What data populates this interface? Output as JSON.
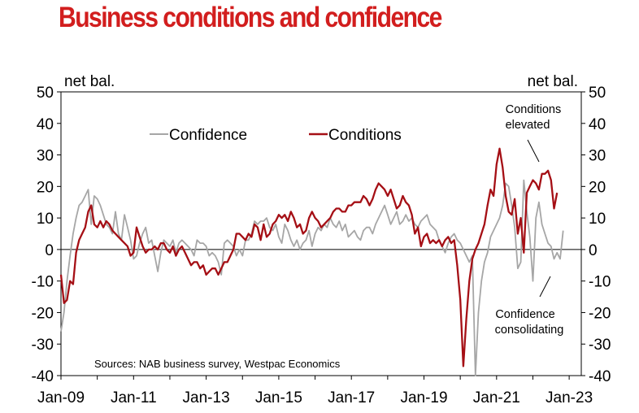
{
  "chart_data": {
    "type": "line",
    "title": "Business conditions and confidence",
    "ylabel_left": "net bal.",
    "ylabel_right": "net bal.",
    "ylim": [
      -40,
      50
    ],
    "yticks": [
      50,
      40,
      30,
      20,
      10,
      0,
      -10,
      -20,
      -30,
      -40
    ],
    "xlim": [
      "2009-01",
      "2023-05"
    ],
    "xticks": [
      "Jan-09",
      "Jan-11",
      "Jan-13",
      "Jan-15",
      "Jan-17",
      "Jan-19",
      "Jan-21",
      "Jan-23"
    ],
    "legend": [
      "Confidence",
      "Conditions"
    ],
    "colors": {
      "Confidence": "#a6a6a6",
      "Conditions": "#a50f15",
      "title": "#d21e1e"
    },
    "annotations": [
      {
        "lines": [
          "Conditions",
          "elevated"
        ]
      },
      {
        "lines": [
          "Confidence",
          "consolidating"
        ]
      }
    ],
    "source": "Sources: NAB business survey, Westpac Economics",
    "series": [
      {
        "name": "Confidence",
        "start": "2009-01",
        "values": [
          -26,
          -20,
          -10,
          -2,
          5,
          10,
          14,
          15,
          17,
          19,
          8,
          17,
          16,
          14,
          11,
          8,
          7,
          5,
          12,
          5,
          3,
          11,
          7,
          3,
          -3,
          -2,
          2,
          5,
          7,
          2,
          3,
          -2,
          -7,
          -1,
          3,
          2,
          1,
          3,
          -1,
          2,
          3,
          2,
          1,
          0,
          -2,
          3,
          2,
          2,
          1,
          -2,
          -1,
          -2,
          -4,
          -8,
          2,
          3,
          2,
          1,
          -2,
          0,
          -2,
          3,
          3,
          5,
          9,
          8,
          9,
          9,
          10,
          7,
          6,
          8,
          4,
          2,
          8,
          6,
          3,
          1,
          3,
          0,
          2,
          3,
          6,
          1,
          5,
          7,
          6,
          8,
          7,
          10,
          8,
          7,
          9,
          6,
          8,
          4,
          5,
          6,
          4,
          3,
          6,
          7,
          7,
          5,
          8,
          10,
          12,
          14,
          11,
          8,
          10,
          12,
          8,
          9,
          11,
          9,
          10,
          8,
          7,
          9,
          10,
          11,
          8,
          7,
          6,
          3,
          1,
          -1,
          2,
          4,
          5,
          3,
          2,
          0,
          -2,
          -4,
          -2,
          -66,
          -20,
          -10,
          -4,
          -1,
          4,
          6,
          8,
          10,
          14,
          21,
          20,
          14,
          7,
          -6,
          -4,
          22,
          12,
          4,
          -10,
          10,
          15,
          8,
          5,
          2,
          1,
          -3,
          -1,
          -3,
          6
        ]
      },
      {
        "name": "Conditions",
        "start": "2009-01",
        "values": [
          -8,
          -17,
          -16,
          -10,
          -11,
          -1,
          3,
          5,
          7,
          12,
          14,
          8,
          7,
          9,
          7,
          9,
          8,
          6,
          5,
          4,
          3,
          2,
          1,
          -2,
          -1,
          7,
          4,
          1,
          -1,
          0,
          0,
          1,
          0,
          2,
          2,
          0,
          -1,
          1,
          -2,
          0,
          1,
          -1,
          -3,
          -5,
          -4,
          -4,
          -6,
          -5,
          -8,
          -7,
          -6,
          -6,
          -8,
          -6,
          -4,
          -4,
          -2,
          0,
          5,
          5,
          4,
          3,
          5,
          4,
          8,
          7,
          3,
          8,
          4,
          5,
          8,
          9,
          11,
          10,
          11,
          9,
          12,
          10,
          7,
          8,
          5,
          6,
          10,
          12,
          10,
          9,
          7,
          8,
          9,
          10,
          12,
          13,
          13,
          12,
          12,
          14,
          14,
          15,
          15,
          15,
          17,
          16,
          14,
          16,
          19,
          21,
          20,
          19,
          17,
          19,
          16,
          13,
          14,
          17,
          15,
          14,
          11,
          5,
          7,
          1,
          4,
          5,
          2,
          3,
          2,
          3,
          1,
          3,
          4,
          2,
          3,
          -5,
          -16,
          -37,
          -22,
          -10,
          -3,
          0,
          2,
          5,
          8,
          14,
          19,
          17,
          27,
          32,
          26,
          17,
          12,
          11,
          16,
          5,
          10,
          -1,
          18,
          20,
          22,
          21,
          19,
          24,
          24,
          25,
          22,
          13,
          18
        ]
      }
    ]
  }
}
